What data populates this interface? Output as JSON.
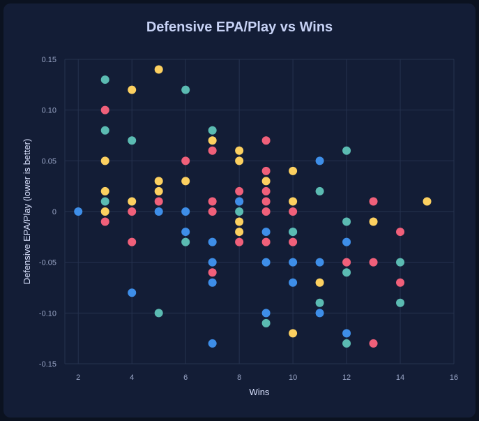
{
  "chart_data": {
    "type": "scatter",
    "title": "Defensive EPA/Play vs Wins",
    "xlabel": "Wins",
    "ylabel": "Defensive EPA/Play (lower is better)",
    "xlim": [
      1.5,
      16
    ],
    "ylim": [
      -0.15,
      0.15
    ],
    "xticks": [
      2,
      4,
      6,
      8,
      10,
      12,
      14,
      16
    ],
    "yticks": [
      0.15,
      0.1,
      0.05,
      0,
      -0.05,
      -0.1,
      -0.15
    ],
    "grid": true,
    "colors": {
      "red": "#f0607a",
      "yellow": "#fcd060",
      "teal": "#5bbbb2",
      "blue": "#3e8ee8"
    },
    "points": [
      {
        "x": 2,
        "y": 0,
        "c": "blue"
      },
      {
        "x": 3,
        "y": 0.13,
        "c": "teal"
      },
      {
        "x": 3,
        "y": 0.1,
        "c": "red"
      },
      {
        "x": 3,
        "y": 0.08,
        "c": "teal"
      },
      {
        "x": 3,
        "y": 0.05,
        "c": "yellow"
      },
      {
        "x": 3,
        "y": 0.02,
        "c": "yellow"
      },
      {
        "x": 3,
        "y": 0.01,
        "c": "teal"
      },
      {
        "x": 3,
        "y": 0,
        "c": "yellow"
      },
      {
        "x": 3,
        "y": -0.01,
        "c": "red"
      },
      {
        "x": 4,
        "y": 0.12,
        "c": "yellow"
      },
      {
        "x": 4,
        "y": 0.07,
        "c": "teal"
      },
      {
        "x": 4,
        "y": 0.01,
        "c": "yellow"
      },
      {
        "x": 4,
        "y": 0,
        "c": "red"
      },
      {
        "x": 4,
        "y": -0.03,
        "c": "red"
      },
      {
        "x": 4,
        "y": -0.08,
        "c": "blue"
      },
      {
        "x": 5,
        "y": 0.14,
        "c": "yellow"
      },
      {
        "x": 5,
        "y": 0.03,
        "c": "yellow"
      },
      {
        "x": 5,
        "y": 0.02,
        "c": "yellow"
      },
      {
        "x": 5,
        "y": 0.01,
        "c": "red"
      },
      {
        "x": 5,
        "y": 0,
        "c": "blue"
      },
      {
        "x": 5,
        "y": -0.1,
        "c": "teal"
      },
      {
        "x": 6,
        "y": 0.12,
        "c": "teal"
      },
      {
        "x": 6,
        "y": 0.05,
        "c": "red"
      },
      {
        "x": 6,
        "y": 0.03,
        "c": "yellow"
      },
      {
        "x": 6,
        "y": 0,
        "c": "blue"
      },
      {
        "x": 6,
        "y": -0.02,
        "c": "blue"
      },
      {
        "x": 6,
        "y": -0.03,
        "c": "teal"
      },
      {
        "x": 7,
        "y": 0.08,
        "c": "teal"
      },
      {
        "x": 7,
        "y": 0.07,
        "c": "yellow"
      },
      {
        "x": 7,
        "y": 0.06,
        "c": "red"
      },
      {
        "x": 7,
        "y": 0.01,
        "c": "red"
      },
      {
        "x": 7,
        "y": 0,
        "c": "red"
      },
      {
        "x": 7,
        "y": -0.03,
        "c": "blue"
      },
      {
        "x": 7,
        "y": -0.05,
        "c": "blue"
      },
      {
        "x": 7,
        "y": -0.06,
        "c": "red"
      },
      {
        "x": 7,
        "y": -0.07,
        "c": "blue"
      },
      {
        "x": 7,
        "y": -0.13,
        "c": "blue"
      },
      {
        "x": 8,
        "y": 0.06,
        "c": "yellow"
      },
      {
        "x": 8,
        "y": 0.05,
        "c": "yellow"
      },
      {
        "x": 8,
        "y": 0.02,
        "c": "red"
      },
      {
        "x": 8,
        "y": 0.01,
        "c": "red"
      },
      {
        "x": 8,
        "y": 0.01,
        "c": "blue"
      },
      {
        "x": 8,
        "y": 0,
        "c": "teal"
      },
      {
        "x": 8,
        "y": -0.01,
        "c": "yellow"
      },
      {
        "x": 8,
        "y": -0.02,
        "c": "yellow"
      },
      {
        "x": 8,
        "y": -0.03,
        "c": "red"
      },
      {
        "x": 9,
        "y": 0.07,
        "c": "red"
      },
      {
        "x": 9,
        "y": 0.04,
        "c": "red"
      },
      {
        "x": 9,
        "y": 0.03,
        "c": "yellow"
      },
      {
        "x": 9,
        "y": 0.02,
        "c": "red"
      },
      {
        "x": 9,
        "y": 0.01,
        "c": "red"
      },
      {
        "x": 9,
        "y": 0,
        "c": "red"
      },
      {
        "x": 9,
        "y": -0.02,
        "c": "blue"
      },
      {
        "x": 9,
        "y": -0.03,
        "c": "red"
      },
      {
        "x": 9,
        "y": -0.05,
        "c": "blue"
      },
      {
        "x": 9,
        "y": -0.1,
        "c": "blue"
      },
      {
        "x": 9,
        "y": -0.11,
        "c": "teal"
      },
      {
        "x": 10,
        "y": 0.04,
        "c": "yellow"
      },
      {
        "x": 10,
        "y": 0.01,
        "c": "yellow"
      },
      {
        "x": 10,
        "y": 0,
        "c": "red"
      },
      {
        "x": 10,
        "y": -0.02,
        "c": "blue"
      },
      {
        "x": 10,
        "y": -0.02,
        "c": "teal"
      },
      {
        "x": 10,
        "y": -0.03,
        "c": "red"
      },
      {
        "x": 10,
        "y": -0.05,
        "c": "blue"
      },
      {
        "x": 10,
        "y": -0.07,
        "c": "blue"
      },
      {
        "x": 10,
        "y": -0.12,
        "c": "yellow"
      },
      {
        "x": 11,
        "y": 0.05,
        "c": "blue"
      },
      {
        "x": 11,
        "y": 0.02,
        "c": "teal"
      },
      {
        "x": 11,
        "y": -0.05,
        "c": "blue"
      },
      {
        "x": 11,
        "y": -0.07,
        "c": "yellow"
      },
      {
        "x": 11,
        "y": -0.09,
        "c": "teal"
      },
      {
        "x": 11,
        "y": -0.1,
        "c": "blue"
      },
      {
        "x": 12,
        "y": 0.06,
        "c": "teal"
      },
      {
        "x": 12,
        "y": -0.01,
        "c": "teal"
      },
      {
        "x": 12,
        "y": -0.03,
        "c": "blue"
      },
      {
        "x": 12,
        "y": -0.05,
        "c": "red"
      },
      {
        "x": 12,
        "y": -0.06,
        "c": "teal"
      },
      {
        "x": 12,
        "y": -0.12,
        "c": "blue"
      },
      {
        "x": 12,
        "y": -0.13,
        "c": "teal"
      },
      {
        "x": 13,
        "y": 0.01,
        "c": "red"
      },
      {
        "x": 13,
        "y": -0.01,
        "c": "yellow"
      },
      {
        "x": 13,
        "y": -0.05,
        "c": "red"
      },
      {
        "x": 13,
        "y": -0.13,
        "c": "red"
      },
      {
        "x": 14,
        "y": -0.02,
        "c": "red"
      },
      {
        "x": 14,
        "y": -0.05,
        "c": "teal"
      },
      {
        "x": 14,
        "y": -0.07,
        "c": "red"
      },
      {
        "x": 14,
        "y": -0.09,
        "c": "teal"
      },
      {
        "x": 15,
        "y": 0.01,
        "c": "yellow"
      }
    ]
  }
}
